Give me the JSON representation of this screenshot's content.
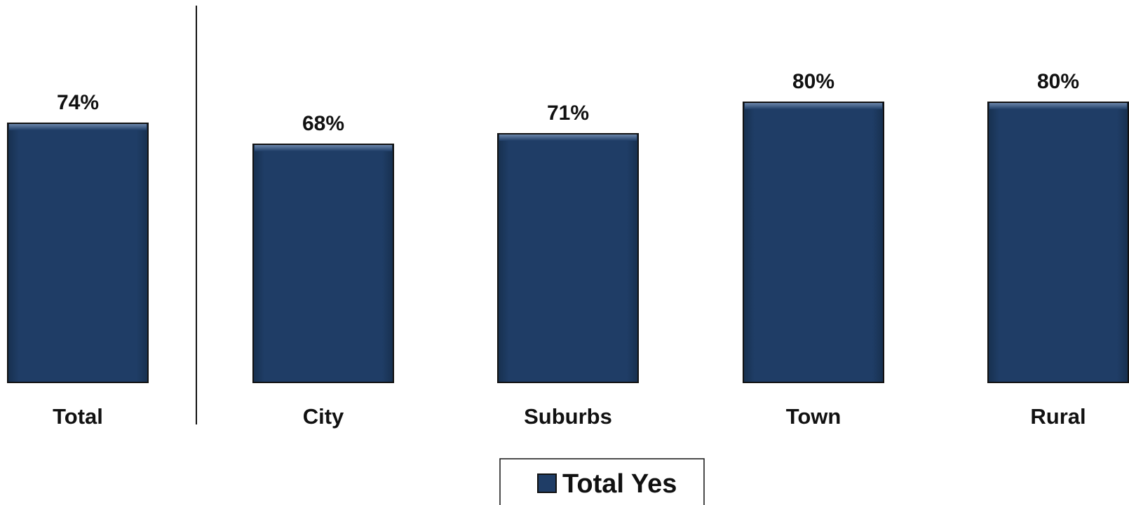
{
  "chart_data": {
    "type": "bar",
    "categories": [
      "Total",
      "City",
      "Suburbs",
      "Town",
      "Rural"
    ],
    "series": [
      {
        "name": "Total Yes",
        "values": [
          74,
          68,
          71,
          80,
          80
        ]
      }
    ],
    "value_labels": [
      "74%",
      "68%",
      "71%",
      "80%",
      "80%"
    ],
    "ylim": [
      0,
      100
    ],
    "grid": false,
    "legend_position": "bottom-center",
    "separator_after_category": "Total"
  },
  "colors": {
    "bar_fill": "#1f3d66",
    "bar_stroke": "#111111",
    "separator": "#111111"
  }
}
